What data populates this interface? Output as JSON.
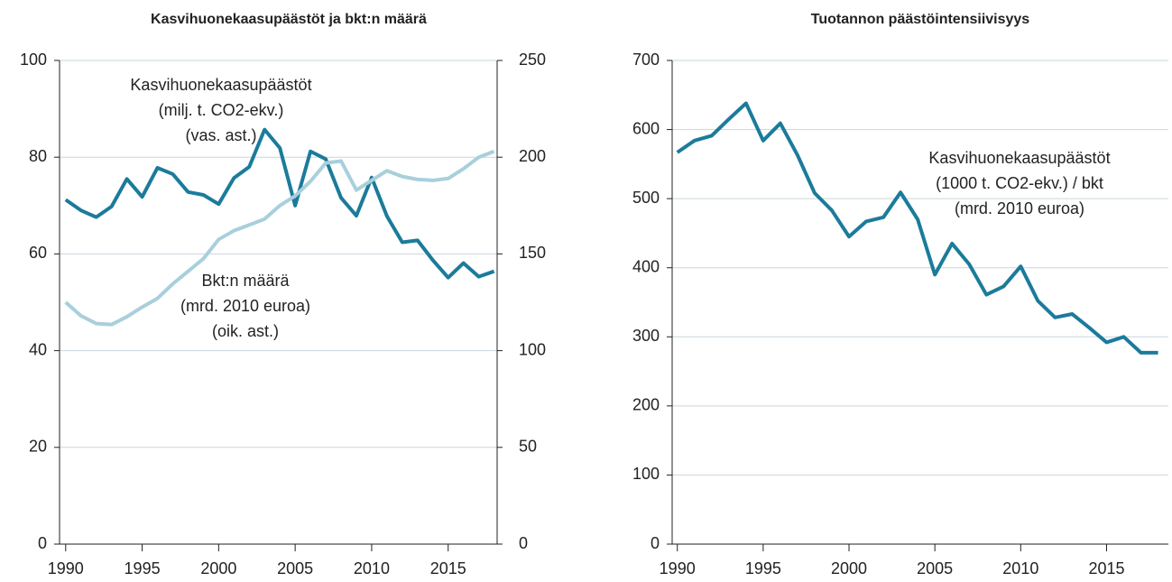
{
  "chart_data": [
    {
      "type": "line",
      "title": "Kasvihuonekaasupäästöt ja bkt:n määrä",
      "x": [
        1990,
        1991,
        1992,
        1993,
        1994,
        1995,
        1996,
        1997,
        1998,
        1999,
        2000,
        2001,
        2002,
        2003,
        2004,
        2005,
        2006,
        2007,
        2008,
        2009,
        2010,
        2011,
        2012,
        2013,
        2014,
        2015,
        2016,
        2017,
        2018
      ],
      "series": [
        {
          "name": "Kasvihuonekaasupäästöt",
          "color": "#1b7b9b",
          "values": [
            71.2,
            69,
            67.6,
            69.8,
            75.5,
            71.8,
            77.8,
            76.5,
            72.8,
            72.2,
            70.3,
            75.7,
            78,
            85.7,
            81.9,
            70,
            81.2,
            79.6,
            71.6,
            67.9,
            75.8,
            67.8,
            62.4,
            62.8,
            58.7,
            55.1,
            58.1,
            55.3,
            56.4
          ]
        },
        {
          "name": "Bkt:n määrä",
          "color": "#a8cfdc",
          "axis": "y2",
          "values": [
            125,
            118,
            114,
            113.5,
            117.5,
            122.5,
            127,
            134.5,
            141,
            147.5,
            157.5,
            162,
            165,
            168,
            175,
            180,
            187.5,
            197,
            198,
            183,
            188,
            193,
            190,
            188.5,
            188,
            189,
            194,
            200,
            203
          ]
        }
      ],
      "annotations": [
        [
          "Kasvihuonekaasupäästöt",
          "(milj. t. CO2-ekv.)",
          "(vas. ast.)"
        ],
        [
          "Bkt:n määrä",
          "(mrd. 2010 euroa)",
          "(oik. ast.)"
        ]
      ],
      "xlim": [
        1989.6,
        2018.2
      ],
      "xticks": [
        1990,
        1995,
        2000,
        2005,
        2010,
        2015
      ],
      "ylim": [
        0,
        100
      ],
      "yticks": [
        0,
        20,
        40,
        60,
        80,
        100
      ],
      "y2lim": [
        0,
        250
      ],
      "y2ticks": [
        0,
        50,
        100,
        150,
        200,
        250
      ],
      "grid": true
    },
    {
      "type": "line",
      "title": "Tuotannon päästöintensiivisyys",
      "x": [
        1990,
        1991,
        1992,
        1993,
        1994,
        1995,
        1996,
        1997,
        1998,
        1999,
        2000,
        2001,
        2002,
        2003,
        2004,
        2005,
        2006,
        2007,
        2008,
        2009,
        2010,
        2011,
        2012,
        2013,
        2014,
        2015,
        2016,
        2017,
        2018
      ],
      "series": [
        {
          "name": "Päästöintensiivisyys",
          "color": "#1b7b9b",
          "values": [
            567,
            584,
            591,
            615,
            638,
            584,
            609,
            563,
            508,
            483,
            445,
            467,
            473,
            509,
            470,
            390,
            435,
            405,
            361,
            373,
            402,
            352,
            328,
            333,
            313,
            292,
            300,
            277,
            277
          ]
        }
      ],
      "annotations": [
        [
          "Kasvihuonekaasupäästöt",
          "(1000 t. CO2-ekv.) / bkt",
          "(mrd. 2010 euroa)"
        ]
      ],
      "xlim": [
        1989.7,
        2018.6
      ],
      "xticks": [
        1990,
        1995,
        2000,
        2005,
        2010,
        2015
      ],
      "ylim": [
        0,
        700
      ],
      "yticks": [
        0,
        100,
        200,
        300,
        400,
        500,
        600,
        700
      ],
      "grid": true
    }
  ]
}
